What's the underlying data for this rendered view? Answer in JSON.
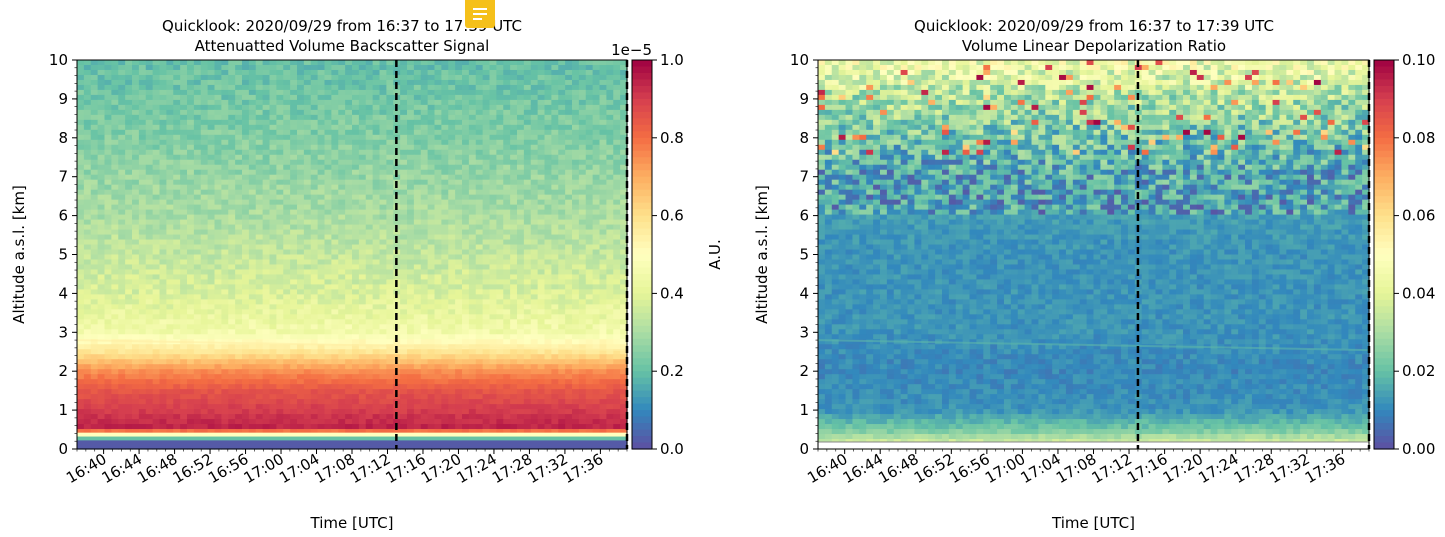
{
  "chart_data": [
    {
      "type": "heatmap",
      "title_line1": "Quicklook: 2020/09/29 from 16:37 to 17:39 UTC",
      "title_line2": "Attenuatted Volume Backscatter Signal",
      "xlabel": "Time [UTC]",
      "ylabel": "Altitude a.s.l. [km]",
      "x_ticks": [
        "16:40",
        "16:44",
        "16:48",
        "16:52",
        "16:56",
        "17:00",
        "17:04",
        "17:08",
        "17:12",
        "17:16",
        "17:20",
        "17:24",
        "17:28",
        "17:32",
        "17:36"
      ],
      "y_ticks": [
        "0",
        "1",
        "2",
        "3",
        "4",
        "5",
        "6",
        "7",
        "8",
        "9",
        "10"
      ],
      "ylim": [
        0,
        10
      ],
      "colormap": "Spectral_r",
      "colorbar": {
        "label": "A.U.",
        "ticks": [
          "0.0",
          "0.2",
          "0.4",
          "0.6",
          "0.8",
          "1.0"
        ],
        "range": [
          0,
          1.0
        ],
        "offset": "1e−5"
      },
      "vertical_dashed_lines_at": [
        "17:13",
        "17:39"
      ],
      "approx_profile": {
        "altitude_km": [
          0.2,
          0.5,
          1.0,
          1.5,
          2.0,
          2.5,
          3.0,
          4.0,
          5.0,
          6.0,
          7.0,
          8.0,
          9.0,
          10.0
        ],
        "value_e5": [
          0.05,
          0.95,
          0.9,
          0.85,
          0.75,
          0.58,
          0.45,
          0.38,
          0.34,
          0.3,
          0.27,
          0.24,
          0.22,
          0.2
        ]
      },
      "cloud_base_km": 2.8
    },
    {
      "type": "heatmap",
      "title_line1": "Quicklook: 2020/09/29 from 16:37 to 17:39 UTC",
      "title_line2": "Volume Linear Depolarization Ratio",
      "xlabel": "Time [UTC]",
      "ylabel": "Altitude a.s.l. [km]",
      "x_ticks": [
        "16:40",
        "16:44",
        "16:48",
        "16:52",
        "16:56",
        "17:00",
        "17:04",
        "17:08",
        "17:12",
        "17:16",
        "17:20",
        "17:24",
        "17:28",
        "17:32",
        "17:36"
      ],
      "y_ticks": [
        "0",
        "1",
        "2",
        "3",
        "4",
        "5",
        "6",
        "7",
        "8",
        "9",
        "10"
      ],
      "ylim": [
        0,
        10
      ],
      "colormap": "Spectral_r",
      "colorbar": {
        "label": "",
        "ticks": [
          "0.00",
          "0.02",
          "0.04",
          "0.06",
          "0.08",
          "0.10"
        ],
        "range": [
          0,
          0.1
        ]
      },
      "vertical_dashed_lines_at": [
        "17:13",
        "17:39"
      ],
      "approx_profile": {
        "altitude_km": [
          0.2,
          0.5,
          1.0,
          2.0,
          3.0,
          5.0,
          7.0,
          9.0,
          10.0
        ],
        "value": [
          0.035,
          0.022,
          0.012,
          0.01,
          0.012,
          0.012,
          0.015,
          0.03,
          0.045
        ]
      },
      "cloud_base_km": 2.8
    }
  ]
}
